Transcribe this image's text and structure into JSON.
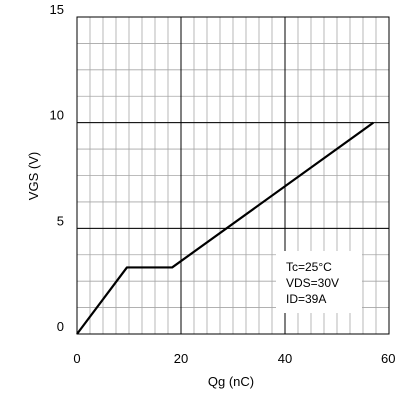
{
  "chart_data": {
    "type": "line",
    "xlabel": "Qg (nC)",
    "ylabel": "VGS (V)",
    "xlim": [
      0,
      60
    ],
    "ylim": [
      0,
      15
    ],
    "x_ticks": [
      "0",
      "20",
      "40",
      "60"
    ],
    "y_ticks": [
      "0",
      "5",
      "10",
      "15"
    ],
    "x_tick_values": [
      0,
      20,
      40,
      60
    ],
    "y_tick_values": [
      0,
      5,
      10,
      15
    ],
    "minor_grid_x_step": 2.5,
    "minor_grid_y_step": 1.25,
    "grid": true,
    "series": [
      {
        "x": [
          0,
          9.6,
          18.3,
          57
        ],
        "y": [
          0,
          3.15,
          3.15,
          10
        ],
        "color": "#000000"
      }
    ],
    "annotation": [
      "Tc=25°C",
      "VDS=30V",
      "ID=39A"
    ]
  }
}
